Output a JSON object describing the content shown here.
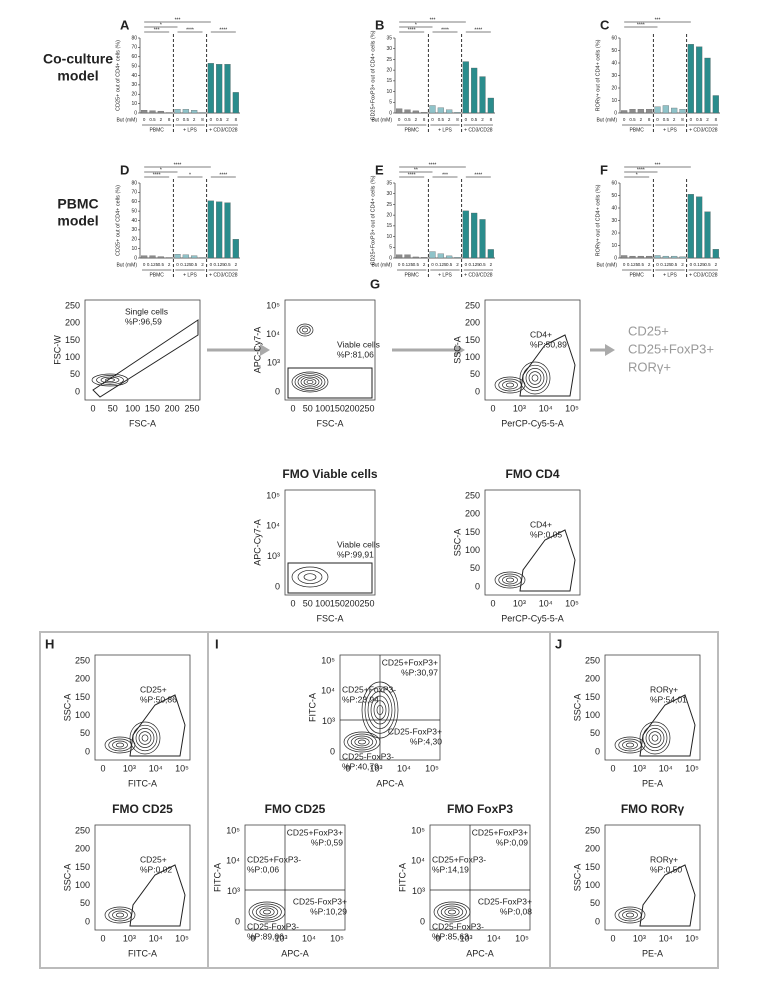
{
  "row_labels": [
    [
      "Co-culture",
      "model"
    ],
    [
      "PBMC",
      "model"
    ]
  ],
  "chart_data": [
    {
      "type": "bar",
      "panel": "A",
      "ylabel": "CD25+ out of CD4+ cells (%)",
      "xlabel": "But (mM)",
      "categories": [
        "0",
        "0.5",
        "2",
        "8",
        "0",
        "0.5",
        "2",
        "8",
        "0",
        "0.5",
        "2",
        "8"
      ],
      "groups": [
        "PBMC",
        "+ LPS",
        "+ CD3/CD28"
      ],
      "group_colors": [
        "#8c8c8c",
        "#8fc3c9",
        "#2a8c8c"
      ],
      "values": [
        3,
        2.5,
        2,
        0.5,
        4,
        4,
        3,
        0.5,
        53,
        52,
        52,
        22
      ],
      "ylim": [
        0,
        80
      ],
      "yticks": [
        0,
        10,
        20,
        30,
        40,
        50,
        60,
        70,
        80
      ],
      "annotations": [
        "***",
        "*",
        "***",
        "****",
        "****"
      ]
    },
    {
      "type": "bar",
      "panel": "B",
      "ylabel": "CD25+FoxP3+ out of CD4+ cells (%)",
      "xlabel": "But (mM)",
      "categories": [
        "0",
        "0.5",
        "2",
        "8",
        "0",
        "0.5",
        "2",
        "8",
        "0",
        "0.5",
        "2",
        "8"
      ],
      "groups": [
        "PBMC",
        "+ LPS",
        "+ CD3/CD28"
      ],
      "group_colors": [
        "#8c8c8c",
        "#8fc3c9",
        "#2a8c8c"
      ],
      "values": [
        2,
        1.5,
        1,
        0.3,
        3.5,
        2.5,
        1.5,
        0.3,
        24,
        21,
        17,
        7
      ],
      "ylim": [
        0,
        35
      ],
      "yticks": [
        0,
        5,
        10,
        15,
        20,
        25,
        30,
        35
      ],
      "annotations": [
        "***",
        "*",
        "****",
        "****",
        "****"
      ]
    },
    {
      "type": "bar",
      "panel": "C",
      "ylabel": "RORγ+ out of CD4+ cells (%)",
      "xlabel": "But (mM)",
      "categories": [
        "0",
        "0.5",
        "2",
        "8",
        "0",
        "0.5",
        "2",
        "8",
        "0",
        "0.5",
        "2",
        "8"
      ],
      "groups": [
        "PBMC",
        "+ LPS",
        "+ CD3/CD28"
      ],
      "group_colors": [
        "#8c8c8c",
        "#8fc3c9",
        "#2a8c8c"
      ],
      "values": [
        2,
        3,
        3,
        3,
        5,
        6,
        4,
        3,
        55,
        53,
        44,
        14
      ],
      "ylim": [
        0,
        60
      ],
      "yticks": [
        0,
        10,
        20,
        30,
        40,
        50,
        60
      ],
      "annotations": [
        "***",
        "****"
      ]
    },
    {
      "type": "bar",
      "panel": "D",
      "ylabel": "CD25+ out of CD4+ cells (%)",
      "xlabel": "But (mM)",
      "categories": [
        "0",
        "0.125",
        "0.5",
        "2",
        "0",
        "0.125",
        "0.5",
        "2",
        "0",
        "0.125",
        "0.5",
        "2"
      ],
      "groups": [
        "PBMC",
        "+ LPS",
        "+ CD3/CD28"
      ],
      "group_colors": [
        "#8c8c8c",
        "#8fc3c9",
        "#2a8c8c"
      ],
      "values": [
        2.5,
        2.5,
        1.5,
        0.5,
        4,
        3.5,
        2.5,
        0.5,
        61,
        60,
        59,
        20
      ],
      "ylim": [
        0,
        80
      ],
      "yticks": [
        0,
        10,
        20,
        30,
        40,
        50,
        60,
        70,
        80
      ],
      "annotations": [
        "****",
        "*",
        "****",
        "*",
        "****"
      ]
    },
    {
      "type": "bar",
      "panel": "E",
      "ylabel": "CD25+FoxP3+ out of CD4+ cells (%)",
      "xlabel": "But (mM)",
      "categories": [
        "0",
        "0.125",
        "0.5",
        "2",
        "0",
        "0.125",
        "0.5",
        "2",
        "0",
        "0.125",
        "0.5",
        "2"
      ],
      "groups": [
        "PBMC",
        "+ LPS",
        "+ CD3/CD28"
      ],
      "group_colors": [
        "#8c8c8c",
        "#8fc3c9",
        "#2a8c8c"
      ],
      "values": [
        1.5,
        1.5,
        0.5,
        0.3,
        3,
        2,
        1,
        0.3,
        22,
        21,
        18,
        4
      ],
      "ylim": [
        0,
        35
      ],
      "yticks": [
        0,
        5,
        10,
        15,
        20,
        25,
        30,
        35
      ],
      "annotations": [
        "****",
        "**",
        "****",
        "***",
        "****"
      ]
    },
    {
      "type": "bar",
      "panel": "F",
      "ylabel": "RORγ+ out of CD4+ cells (%)",
      "xlabel": "But (mM)",
      "categories": [
        "0",
        "0.125",
        "0.5",
        "2",
        "0",
        "0.125",
        "0.5",
        "2",
        "0",
        "0.125",
        "0.5",
        "2"
      ],
      "groups": [
        "PBMC",
        "+ LPS",
        "+ CD3/CD28"
      ],
      "group_colors": [
        "#8c8c8c",
        "#8fc3c9",
        "#2a8c8c"
      ],
      "values": [
        2,
        1.5,
        1.5,
        1.5,
        2,
        1.5,
        1.5,
        1,
        51,
        49,
        37,
        7
      ],
      "ylim": [
        0,
        60
      ],
      "yticks": [
        0,
        10,
        20,
        30,
        40,
        50,
        60
      ],
      "annotations": [
        "***",
        "****",
        "*"
      ]
    }
  ],
  "panel_g": {
    "letter": "G",
    "arrow_labels": [
      "CD25+",
      "CD25+FoxP3+",
      "RORγ+"
    ]
  },
  "panel_letters": [
    "H",
    "I",
    "J"
  ],
  "flow_plots": [
    {
      "ylabel": "FSC-W",
      "xlabel": "FSC-A",
      "yticks": [
        "0",
        "50",
        "100",
        "150",
        "200",
        "250"
      ],
      "xticks": [
        "0",
        "50",
        "100",
        "150",
        "200",
        "250"
      ],
      "gates": [
        [
          "Single cells",
          "%P:96,59"
        ]
      ]
    },
    {
      "ylabel": "APC-Cy7-A",
      "xlabel": "FSC-A",
      "yticks": [
        "0",
        "10³",
        "10⁴",
        "10⁵"
      ],
      "xticks": [
        "0",
        "50",
        "100",
        "150",
        "200",
        "250"
      ],
      "gates": [
        [
          "Viable cells",
          "%P:81,06"
        ]
      ]
    },
    {
      "ylabel": "SSC-A",
      "xlabel": "PerCP-Cy5-5-A",
      "yticks": [
        "0",
        "50",
        "100",
        "150",
        "200",
        "250"
      ],
      "xticks": [
        "0",
        "10³",
        "10⁴",
        "10⁵"
      ],
      "gates": [
        [
          "CD4+",
          "%P:50,89"
        ]
      ]
    },
    {
      "title": "FMO Viable cells",
      "ylabel": "APC-Cy7-A",
      "xlabel": "FSC-A",
      "yticks": [
        "0",
        "10³",
        "10⁴",
        "10⁵"
      ],
      "xticks": [
        "0",
        "50",
        "100",
        "150",
        "200",
        "250"
      ],
      "gates": [
        [
          "Viable cells",
          "%P:99,91"
        ]
      ]
    },
    {
      "title": "FMO CD4",
      "ylabel": "SSC-A",
      "xlabel": "PerCP-Cy5-5-A",
      "yticks": [
        "0",
        "50",
        "100",
        "150",
        "200",
        "250"
      ],
      "xticks": [
        "0",
        "10³",
        "10⁴",
        "10⁵"
      ],
      "gates": [
        [
          "CD4+",
          "%P:0,05"
        ]
      ]
    },
    {
      "ylabel": "SSC-A",
      "xlabel": "FITC-A",
      "yticks": [
        "0",
        "50",
        "100",
        "150",
        "200",
        "250"
      ],
      "xticks": [
        "0",
        "10³",
        "10⁴",
        "10⁵"
      ],
      "gates": [
        [
          "CD25+",
          "%P:50,86"
        ]
      ]
    },
    {
      "title": "FMO CD25",
      "ylabel": "SSC-A",
      "xlabel": "FITC-A",
      "yticks": [
        "0",
        "50",
        "100",
        "150",
        "200",
        "250"
      ],
      "xticks": [
        "0",
        "10³",
        "10⁴",
        "10⁵"
      ],
      "gates": [
        [
          "CD25+",
          "%P:0,02"
        ]
      ]
    },
    {
      "ylabel": "FITC-A",
      "xlabel": "APC-A",
      "yticks": [
        "0",
        "10³",
        "10⁴",
        "10⁵"
      ],
      "xticks": [
        "0",
        "10³",
        "10⁴",
        "10⁵"
      ],
      "gates": [
        [
          "CD25+FoxP3-",
          "%P:23,94"
        ],
        [
          "CD25+FoxP3+",
          "%P:30,97"
        ],
        [
          "CD25-FoxP3-",
          "%P:40,79"
        ],
        [
          "CD25-FoxP3+",
          "%P:4,30"
        ]
      ]
    },
    {
      "title": "FMO CD25",
      "ylabel": "FITC-A",
      "xlabel": "APC-A",
      "yticks": [
        "0",
        "10³",
        "10⁴",
        "10⁵"
      ],
      "xticks": [
        "0",
        "10³",
        "10⁴",
        "10⁵"
      ],
      "gates": [
        [
          "CD25+FoxP3-",
          "%P:0,06"
        ],
        [
          "CD25+FoxP3+",
          "%P:0,59"
        ],
        [
          "CD25-FoxP3-",
          "%P:89,06"
        ],
        [
          "CD25-FoxP3+",
          "%P:10,29"
        ]
      ]
    },
    {
      "title": "FMO FoxP3",
      "ylabel": "FITC-A",
      "xlabel": "APC-A",
      "yticks": [
        "0",
        "10³",
        "10⁴",
        "10⁵"
      ],
      "xticks": [
        "0",
        "10³",
        "10⁴",
        "10⁵"
      ],
      "gates": [
        [
          "CD25+FoxP3-",
          "%P:14,19"
        ],
        [
          "CD25+FoxP3+",
          "%P:0,09"
        ],
        [
          "CD25-FoxP3-",
          "%P:85,63"
        ],
        [
          "CD25-FoxP3+",
          "%P:0,08"
        ]
      ]
    },
    {
      "ylabel": "SSC-A",
      "xlabel": "PE-A",
      "yticks": [
        "0",
        "50",
        "100",
        "150",
        "200",
        "250"
      ],
      "xticks": [
        "0",
        "10³",
        "10⁴",
        "10⁵"
      ],
      "gates": [
        [
          "RORγ+",
          "%P:54,01"
        ]
      ]
    },
    {
      "title": "FMO RORγ",
      "ylabel": "SSC-A",
      "xlabel": "PE-A",
      "yticks": [
        "0",
        "50",
        "100",
        "150",
        "200",
        "250"
      ],
      "xticks": [
        "0",
        "10³",
        "10⁴",
        "10⁵"
      ],
      "gates": [
        [
          "RORγ+",
          "%P:0,50"
        ]
      ]
    }
  ]
}
